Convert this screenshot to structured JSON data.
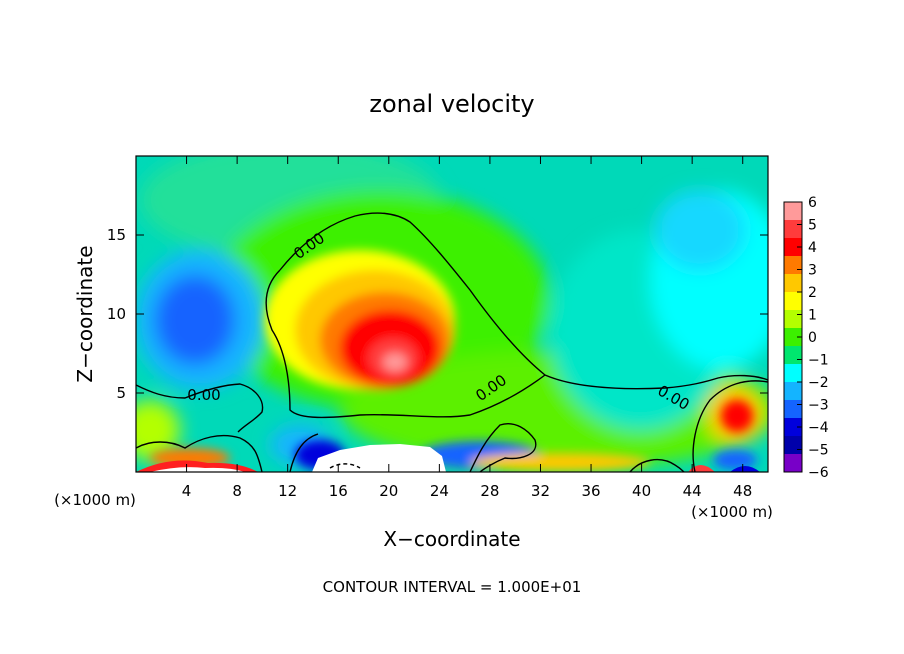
{
  "chart_data": {
    "type": "heatmap",
    "title": "zonal velocity",
    "xlabel": "X−coordinate",
    "ylabel": "Z−coordinate",
    "x_unit_left": "(×1000 m)",
    "x_unit_right": "(×1000 m)",
    "xlim": [
      0,
      50
    ],
    "ylim": [
      0,
      20
    ],
    "x_ticks": [
      4,
      8,
      12,
      16,
      20,
      24,
      28,
      32,
      36,
      40,
      44,
      48
    ],
    "y_ticks": [
      5,
      10,
      15
    ],
    "colorbar": {
      "ticks": [
        6,
        5,
        4,
        3,
        2,
        1,
        0,
        -1,
        -2,
        -3,
        -4,
        -5,
        -6
      ],
      "tick_labels": [
        "6",
        "5",
        "4",
        "3",
        "2",
        "1",
        "0",
        "−1",
        "−2",
        "−3",
        "−4",
        "−5",
        "−6"
      ],
      "colors": [
        "#ff9a9a",
        "#ff3c3c",
        "#ff0000",
        "#ff7a00",
        "#ffc800",
        "#ffff00",
        "#b4ff00",
        "#3cf000",
        "#00e66e",
        "#00ffff",
        "#14b4ff",
        "#1464ff",
        "#0000dc",
        "#0000aa",
        "#7800c8"
      ]
    },
    "contour_labels": [
      "0.00",
      "0.00",
      "0.00",
      "0.00"
    ],
    "contour_interval_text": "CONTOUR INTERVAL = 1.000E+01"
  }
}
